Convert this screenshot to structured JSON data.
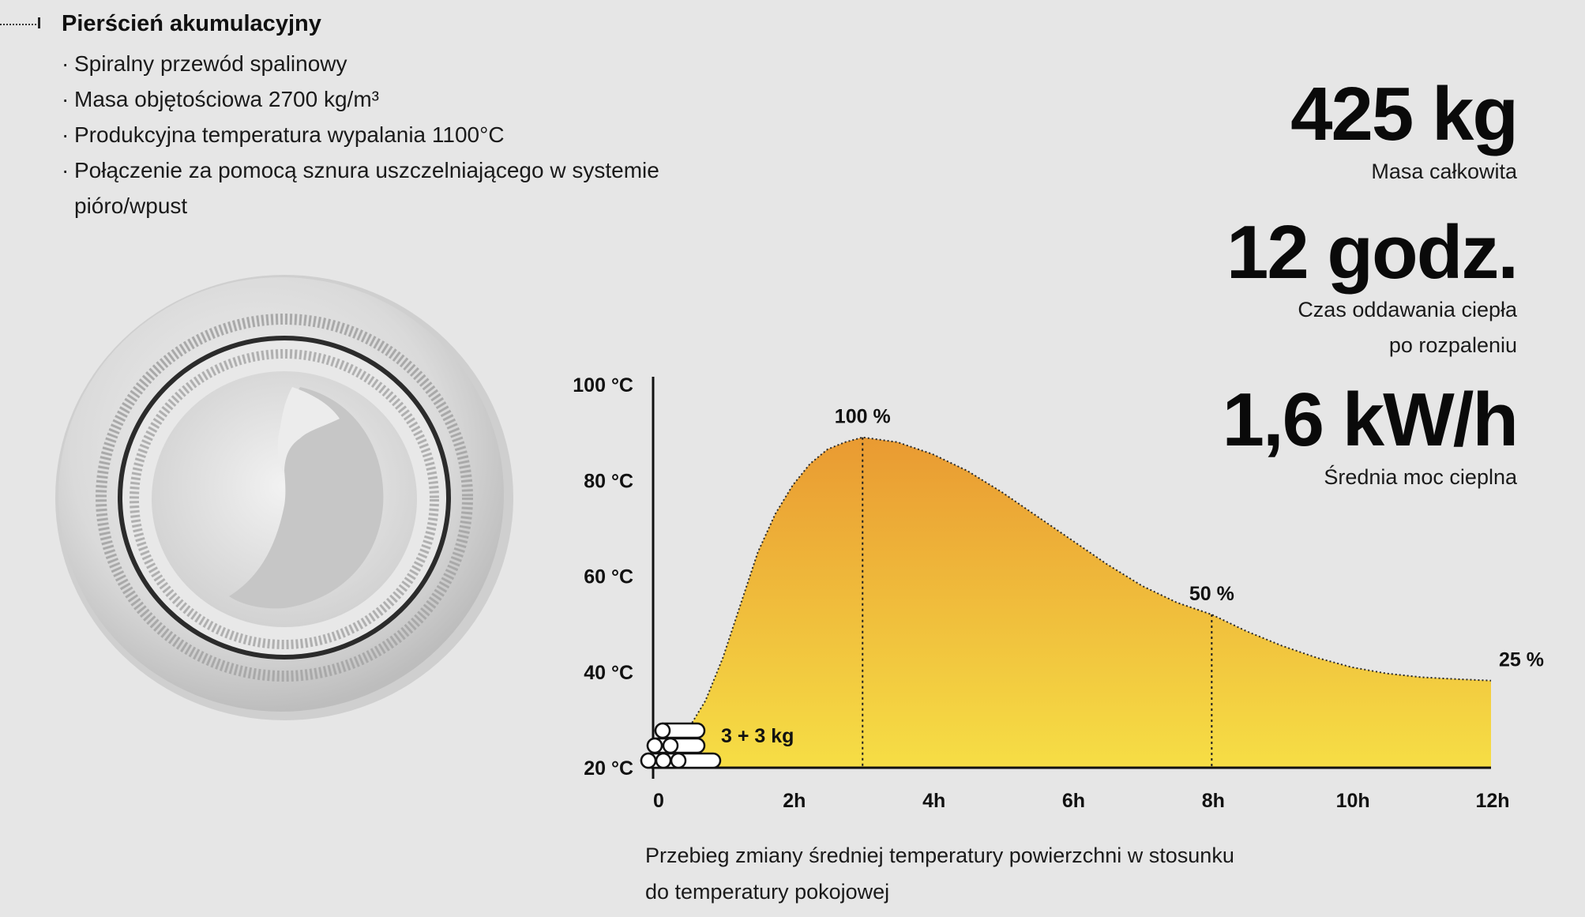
{
  "heading": "Pierścień akumulacyjny",
  "features": [
    {
      "bullet": "·",
      "text": "Spiralny przewód spalinowy"
    },
    {
      "bullet": "·",
      "text": "Masa objętościowa 2700 kg/m³"
    },
    {
      "bullet": "·",
      "text": "Produkcyjna temperatura wypalania 1100°C"
    },
    {
      "bullet": "·",
      "text": "Połączenie za pomocą sznura uszczelniającego w systemie pióro/wpust"
    }
  ],
  "stats": {
    "mass_value": "425 kg",
    "mass_label": "Masa całkowita",
    "time_value": "12 godz.",
    "time_label_1": "Czas oddawania ciepła",
    "time_label_2": "po rozpaleniu",
    "power_value": "1,6 kW/h",
    "power_label": "Średnia moc cieplna"
  },
  "caption_line_1": "Przebieg zmiany średniej temperatury powierzchni w stosunku",
  "caption_line_2": "do temperatury pokojowej",
  "colors": {
    "background": "#e6e6e6",
    "fill_top": "#e99a32",
    "fill_bottom": "#f6de45",
    "text": "#111111"
  },
  "chart_data": {
    "type": "area",
    "title": "",
    "xlabel": "",
    "ylabel": "",
    "x_ticks": [
      "0",
      "2h",
      "4h",
      "6h",
      "8h",
      "10h",
      "12h"
    ],
    "y_ticks": [
      "20 °C",
      "40 °C",
      "60 °C",
      "80 °C",
      "100 °C"
    ],
    "xlim": [
      0,
      12
    ],
    "ylim": [
      20,
      100
    ],
    "grid": false,
    "series": [
      {
        "x": [
          0.5,
          0.75,
          1.0,
          1.25,
          1.5,
          1.75,
          2.0,
          2.25,
          2.5,
          2.75,
          3.0,
          3.5,
          4.0,
          4.5,
          5.0,
          5.5,
          6.0,
          6.5,
          7.0,
          7.5,
          8.0,
          8.5,
          9.0,
          9.5,
          10.0,
          10.5,
          11.0,
          11.5,
          12.0
        ],
        "y": [
          28,
          34,
          43,
          54,
          65,
          73,
          79,
          83.5,
          86.5,
          88,
          89,
          88,
          85.5,
          82,
          77.5,
          72.5,
          67.5,
          62.5,
          58,
          54.5,
          52,
          48.5,
          45.5,
          43,
          41,
          39.7,
          38.9,
          38.5,
          38.2
        ]
      }
    ],
    "annotations": [
      {
        "x": 3,
        "y": 89,
        "label": "100 %"
      },
      {
        "x": 8,
        "y": 52,
        "label": "50 %"
      },
      {
        "x": 12,
        "y": 38.2,
        "label": "25 %"
      }
    ],
    "fuel_label": "3 + 3 kg"
  }
}
